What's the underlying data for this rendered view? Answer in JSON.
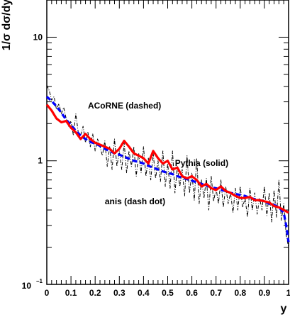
{
  "chart_data": {
    "type": "line",
    "title": "",
    "xlabel": "y",
    "ylabel": "1/σ dσ/dy",
    "xlim": [
      0,
      1
    ],
    "ylim": [
      0.1,
      20
    ],
    "yscale": "log",
    "grid": false,
    "legend": "none",
    "x_ticks": [
      {
        "value": 0,
        "label": "0"
      },
      {
        "value": 0.1,
        "label": "0.1"
      },
      {
        "value": 0.2,
        "label": "0.2"
      },
      {
        "value": 0.3,
        "label": "0.3"
      },
      {
        "value": 0.4,
        "label": "0.4"
      },
      {
        "value": 0.5,
        "label": "0.5"
      },
      {
        "value": 0.6,
        "label": "0.6"
      },
      {
        "value": 0.7,
        "label": "0.7"
      },
      {
        "value": 0.8,
        "label": "0.8"
      },
      {
        "value": 0.9,
        "label": "0.9"
      },
      {
        "value": 1,
        "label": "1"
      }
    ],
    "y_ticks": [
      {
        "value": 10,
        "label": "10"
      },
      {
        "value": 1,
        "label": "1"
      },
      {
        "value": 0.1,
        "base": "10",
        "exp": "−1"
      }
    ],
    "annotations": [
      {
        "text": "ACoRNE (dashed)",
        "x": 0.17,
        "y": 2.65
      },
      {
        "text": "Pythia (solid)",
        "x": 0.53,
        "y": 0.91
      },
      {
        "text": "anis (dash dot)",
        "x": 0.24,
        "y": 0.445
      }
    ],
    "series": [
      {
        "style": "solid",
        "color": "#ff0000",
        "x": [
          0,
          0.02,
          0.04,
          0.06,
          0.08,
          0.1,
          0.12,
          0.14,
          0.16,
          0.18,
          0.2,
          0.22,
          0.24,
          0.26,
          0.28,
          0.3,
          0.32,
          0.34,
          0.36,
          0.38,
          0.4,
          0.42,
          0.44,
          0.46,
          0.48,
          0.5,
          0.52,
          0.54,
          0.56,
          0.58,
          0.6,
          0.62,
          0.64,
          0.66,
          0.68,
          0.7,
          0.72,
          0.74,
          0.76,
          0.78,
          0.8,
          0.82,
          0.84,
          0.86,
          0.88,
          0.9,
          0.92,
          0.94,
          0.96,
          0.98,
          1.0
        ],
        "values": [
          2.85,
          2.55,
          2.2,
          2.05,
          2.1,
          1.85,
          1.7,
          1.5,
          1.65,
          1.5,
          1.4,
          1.35,
          1.3,
          1.25,
          1.15,
          1.25,
          1.45,
          1.3,
          1.15,
          1.1,
          1.05,
          0.95,
          1.2,
          1.05,
          0.95,
          1.0,
          0.85,
          0.88,
          0.75,
          0.72,
          0.75,
          0.7,
          0.62,
          0.65,
          0.6,
          0.58,
          0.62,
          0.57,
          0.55,
          0.52,
          0.5,
          0.5,
          0.51,
          0.48,
          0.48,
          0.47,
          0.46,
          0.43,
          0.42,
          0.4,
          0.38
        ]
      },
      {
        "style": "dashed",
        "color": "#0000ff",
        "x": [
          0,
          0.02,
          0.04,
          0.06,
          0.08,
          0.1,
          0.12,
          0.14,
          0.16,
          0.18,
          0.2,
          0.22,
          0.24,
          0.26,
          0.28,
          0.3,
          0.32,
          0.34,
          0.36,
          0.38,
          0.4,
          0.42,
          0.44,
          0.46,
          0.48,
          0.5,
          0.52,
          0.54,
          0.56,
          0.58,
          0.6,
          0.62,
          0.64,
          0.66,
          0.68,
          0.7,
          0.72,
          0.74,
          0.76,
          0.78,
          0.8,
          0.82,
          0.84,
          0.86,
          0.88,
          0.9,
          0.92,
          0.94,
          0.96,
          0.98,
          0.99,
          1.0
        ],
        "values": [
          3.3,
          3.05,
          2.75,
          2.45,
          2.15,
          1.95,
          1.75,
          1.6,
          1.5,
          1.42,
          1.38,
          1.32,
          1.25,
          1.2,
          1.15,
          1.12,
          1.08,
          1.04,
          1.0,
          0.98,
          0.95,
          0.91,
          0.88,
          0.85,
          0.82,
          0.8,
          0.78,
          0.75,
          0.73,
          0.71,
          0.69,
          0.67,
          0.65,
          0.63,
          0.61,
          0.6,
          0.58,
          0.57,
          0.55,
          0.54,
          0.53,
          0.52,
          0.5,
          0.49,
          0.48,
          0.47,
          0.45,
          0.44,
          0.42,
          0.38,
          0.3,
          0.22
        ]
      },
      {
        "style": "dashdot",
        "color": "#000000",
        "x": [
          0,
          0.01,
          0.02,
          0.03,
          0.04,
          0.05,
          0.06,
          0.07,
          0.08,
          0.09,
          0.1,
          0.11,
          0.12,
          0.13,
          0.14,
          0.15,
          0.16,
          0.17,
          0.18,
          0.19,
          0.2,
          0.21,
          0.22,
          0.23,
          0.24,
          0.25,
          0.26,
          0.27,
          0.28,
          0.29,
          0.3,
          0.31,
          0.32,
          0.33,
          0.34,
          0.35,
          0.36,
          0.37,
          0.38,
          0.39,
          0.4,
          0.41,
          0.42,
          0.43,
          0.44,
          0.45,
          0.46,
          0.47,
          0.48,
          0.49,
          0.5,
          0.51,
          0.52,
          0.53,
          0.54,
          0.55,
          0.56,
          0.57,
          0.58,
          0.59,
          0.6,
          0.61,
          0.62,
          0.63,
          0.64,
          0.65,
          0.66,
          0.67,
          0.68,
          0.69,
          0.7,
          0.71,
          0.72,
          0.73,
          0.74,
          0.75,
          0.76,
          0.77,
          0.78,
          0.79,
          0.8,
          0.81,
          0.82,
          0.83,
          0.84,
          0.85,
          0.86,
          0.87,
          0.88,
          0.89,
          0.9,
          0.91,
          0.92,
          0.93,
          0.94,
          0.95,
          0.96,
          0.97,
          0.98,
          0.99,
          1.0
        ],
        "values": [
          4.1,
          3.7,
          3.1,
          3.3,
          2.6,
          2.9,
          2.4,
          2.7,
          2.2,
          1.9,
          2.1,
          1.6,
          2.4,
          1.7,
          1.6,
          1.9,
          1.4,
          1.7,
          1.3,
          1.65,
          1.2,
          1.5,
          1.3,
          1.1,
          1.45,
          0.9,
          1.3,
          0.85,
          1.5,
          0.9,
          1.2,
          0.85,
          1.4,
          0.8,
          1.2,
          0.9,
          1.3,
          0.75,
          1.15,
          0.8,
          1.3,
          0.75,
          1.05,
          0.7,
          1.15,
          0.72,
          1.0,
          0.68,
          1.2,
          0.62,
          0.95,
          0.6,
          1.2,
          0.55,
          0.9,
          0.62,
          0.85,
          0.52,
          1.1,
          0.55,
          0.8,
          0.48,
          1.05,
          0.45,
          0.7,
          0.5,
          0.72,
          0.4,
          0.75,
          0.47,
          0.6,
          0.45,
          0.7,
          0.42,
          0.62,
          0.45,
          0.55,
          0.38,
          0.6,
          0.4,
          0.62,
          0.42,
          0.5,
          0.35,
          0.6,
          0.4,
          0.55,
          0.37,
          0.5,
          0.4,
          0.62,
          0.36,
          0.55,
          0.32,
          0.58,
          0.35,
          0.7,
          0.33,
          0.45,
          0.25,
          0.2
        ]
      }
    ]
  }
}
